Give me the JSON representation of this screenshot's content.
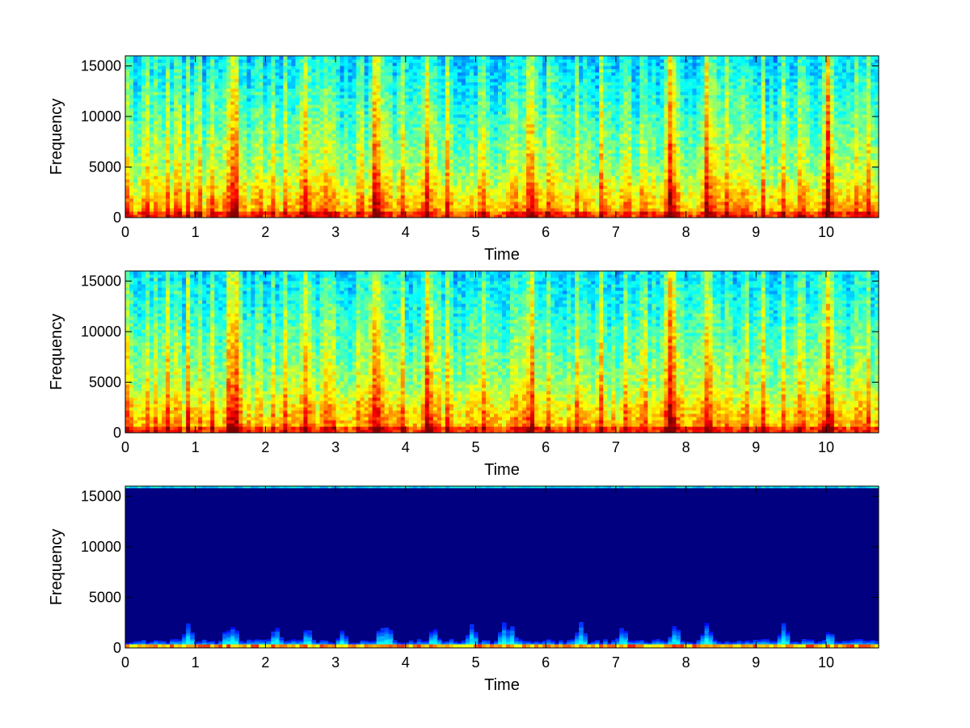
{
  "figure": {
    "background": "#ffffff",
    "colormap": "jet",
    "colormap_stops": [
      "#00007f",
      "#0000ff",
      "#007fff",
      "#00ffff",
      "#7fff7f",
      "#ffff00",
      "#ff7f00",
      "#ff0000",
      "#7f0000"
    ]
  },
  "chart_data": [
    {
      "type": "heatmap",
      "title": "",
      "xlabel": "Time",
      "ylabel": "Frequency",
      "xlim": [
        0,
        10.75
      ],
      "ylim": [
        0,
        16000
      ],
      "xticks": [
        0,
        1,
        2,
        3,
        4,
        5,
        6,
        7,
        8,
        9,
        10
      ],
      "yticks": [
        0,
        5000,
        10000,
        15000
      ],
      "colormap": "jet",
      "description_of_content": "broadband speech/music spectrogram",
      "onsets": [
        0.05,
        0.3,
        0.45,
        0.6,
        0.75,
        0.9,
        1.05,
        1.25,
        1.5,
        1.58,
        1.9,
        2.1,
        2.3,
        2.55,
        2.85,
        2.95,
        3.35,
        3.55,
        3.6,
        3.95,
        4.3,
        4.6,
        5.1,
        5.55,
        5.8,
        6.05,
        6.45,
        6.8,
        7.15,
        7.4,
        7.75,
        7.8,
        8.3,
        8.6,
        8.85,
        9.1,
        9.4,
        9.65,
        10.0,
        10.05,
        10.45,
        10.6
      ],
      "energy_peaks": [
        {
          "t": 1.55,
          "level": 0.9
        },
        {
          "t": 2.6,
          "level": 0.8
        },
        {
          "t": 3.62,
          "level": 0.85
        },
        {
          "t": 4.35,
          "level": 0.95
        },
        {
          "t": 5.75,
          "level": 0.9
        },
        {
          "t": 7.8,
          "level": 1.0
        },
        {
          "t": 8.35,
          "level": 0.9
        },
        {
          "t": 10.05,
          "level": 0.85
        }
      ]
    },
    {
      "type": "heatmap",
      "title": "",
      "xlabel": "Time",
      "ylabel": "Frequency",
      "xlim": [
        0,
        10.75
      ],
      "ylim": [
        0,
        16000
      ],
      "xticks": [
        0,
        1,
        2,
        3,
        4,
        5,
        6,
        7,
        8,
        9,
        10
      ],
      "yticks": [
        0,
        5000,
        10000,
        15000
      ],
      "colormap": "jet",
      "description_of_content": "broadband spectrogram, near-identical copy of the first",
      "onsets": [
        0.05,
        0.3,
        0.45,
        0.6,
        0.75,
        0.9,
        1.05,
        1.25,
        1.5,
        1.58,
        1.9,
        2.1,
        2.3,
        2.55,
        2.85,
        2.95,
        3.35,
        3.55,
        3.6,
        3.95,
        4.3,
        4.6,
        5.1,
        5.55,
        5.8,
        6.05,
        6.45,
        6.8,
        7.15,
        7.4,
        7.75,
        7.8,
        8.3,
        8.6,
        8.85,
        9.1,
        9.4,
        9.65,
        10.0,
        10.05,
        10.45,
        10.6
      ],
      "energy_peaks": [
        {
          "t": 1.55,
          "level": 0.9
        },
        {
          "t": 2.6,
          "level": 0.8
        },
        {
          "t": 3.62,
          "level": 0.85
        },
        {
          "t": 4.35,
          "level": 0.95
        },
        {
          "t": 5.75,
          "level": 0.9
        },
        {
          "t": 7.8,
          "level": 1.0
        },
        {
          "t": 8.35,
          "level": 0.9
        },
        {
          "t": 10.05,
          "level": 0.85
        }
      ]
    },
    {
      "type": "heatmap",
      "title": "",
      "xlabel": "Time",
      "ylabel": "Frequency",
      "xlim": [
        0,
        10.75
      ],
      "ylim": [
        0,
        16000
      ],
      "xticks": [
        0,
        1,
        2,
        3,
        4,
        5,
        6,
        7,
        8,
        9,
        10
      ],
      "yticks": [
        0,
        5000,
        10000,
        15000
      ],
      "colormap": "jet",
      "description_of_content": "mostly low values (dark blue); energy only near 0-2500 Hz and a thin band near 16000 Hz",
      "low_band_max_freq": 2500,
      "low_band_bursts": [
        {
          "t": 0.9,
          "height": 2200
        },
        {
          "t": 1.45,
          "height": 1800
        },
        {
          "t": 1.55,
          "height": 2100
        },
        {
          "t": 2.15,
          "height": 2000
        },
        {
          "t": 2.6,
          "height": 1900
        },
        {
          "t": 3.1,
          "height": 1500
        },
        {
          "t": 3.65,
          "height": 2000
        },
        {
          "t": 3.75,
          "height": 2100
        },
        {
          "t": 4.4,
          "height": 1900
        },
        {
          "t": 4.95,
          "height": 2200
        },
        {
          "t": 5.4,
          "height": 2300
        },
        {
          "t": 5.5,
          "height": 2200
        },
        {
          "t": 6.5,
          "height": 2300
        },
        {
          "t": 7.1,
          "height": 2000
        },
        {
          "t": 7.85,
          "height": 2200
        },
        {
          "t": 8.3,
          "height": 2300
        },
        {
          "t": 9.4,
          "height": 2300
        },
        {
          "t": 10.05,
          "height": 1500
        }
      ],
      "top_band_freq": 15800
    }
  ]
}
